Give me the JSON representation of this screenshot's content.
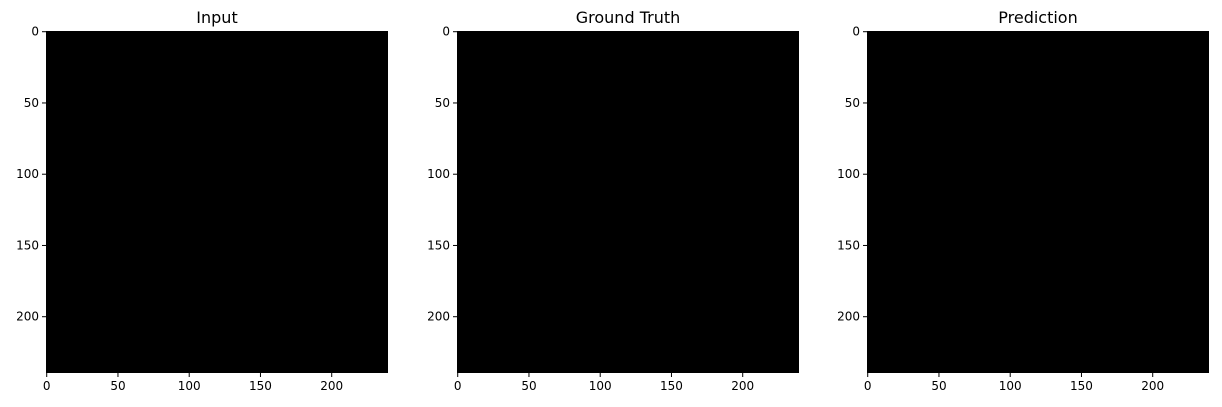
{
  "chart_data": [
    {
      "type": "heatmap",
      "title": "Input",
      "xticks": [
        0,
        50,
        100,
        150,
        200
      ],
      "yticks": [
        0,
        50,
        100,
        150,
        200
      ],
      "xlim": [
        -0.5,
        239.5
      ],
      "ylim": [
        239.5,
        -0.5
      ],
      "image_color": "#000000"
    },
    {
      "type": "heatmap",
      "title": "Ground Truth",
      "xticks": [
        0,
        50,
        100,
        150,
        200
      ],
      "yticks": [
        0,
        50,
        100,
        150,
        200
      ],
      "xlim": [
        -0.5,
        239.5
      ],
      "ylim": [
        239.5,
        -0.5
      ],
      "image_color": "#000000"
    },
    {
      "type": "heatmap",
      "title": "Prediction",
      "xticks": [
        0,
        50,
        100,
        150,
        200
      ],
      "yticks": [
        0,
        50,
        100,
        150,
        200
      ],
      "xlim": [
        -0.5,
        239.5
      ],
      "ylim": [
        239.5,
        -0.5
      ],
      "image_color": "#000000"
    }
  ]
}
